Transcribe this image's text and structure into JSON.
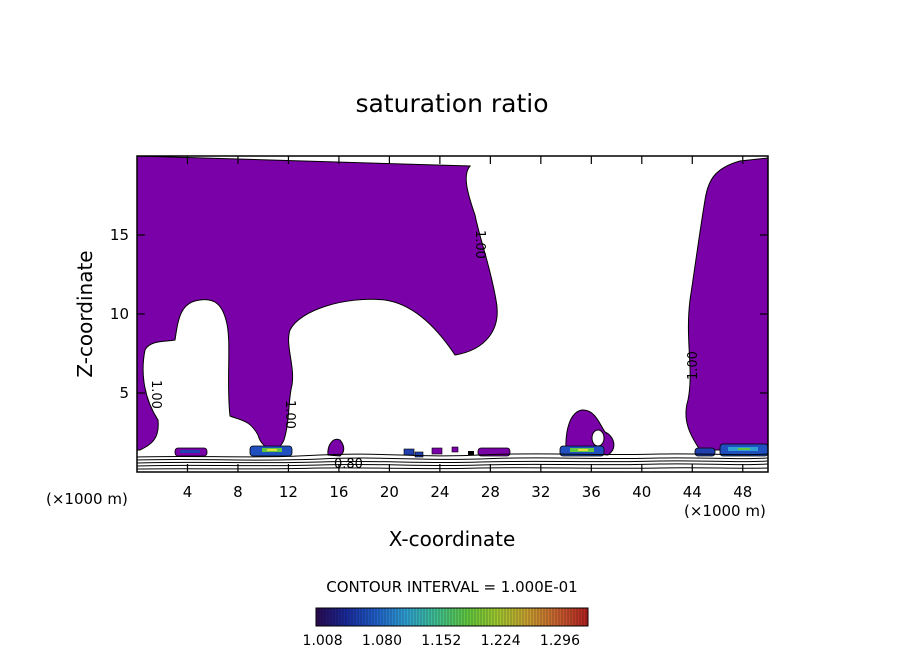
{
  "chart_data": {
    "type": "heatmap",
    "title": "saturation ratio",
    "xlabel": "X-coordinate",
    "ylabel": "Z-coordinate",
    "x_unit_label": "(×1000 m)",
    "z_unit_label": "(×1000 m)",
    "xlim": [
      0,
      50
    ],
    "ylim": [
      0,
      20
    ],
    "x_ticks": [
      4,
      8,
      12,
      16,
      20,
      24,
      28,
      32,
      36,
      40,
      44,
      48
    ],
    "y_ticks": [
      5,
      10,
      15
    ],
    "contour_interval_label": "CONTOUR INTERVAL = 1.000E-01",
    "contour_labels": [
      "1.00",
      "1.00",
      "1.00",
      "1.00",
      "0.80"
    ],
    "colorbar": {
      "min": 1.0,
      "max": 1.33,
      "tick_labels": [
        "1.008",
        "1.080",
        "1.152",
        "1.224",
        "1.296"
      ],
      "colors": [
        "#2a0a50",
        "#1a2a9a",
        "#2060c8",
        "#30a0d0",
        "#40c090",
        "#60c840",
        "#a0c830",
        "#c8a030",
        "#c86030",
        "#b02020"
      ]
    },
    "fill_color": "#7a00a8",
    "contour_line_color": "#000000",
    "regions": [
      {
        "name": "left-upper-saturated",
        "x": [
          0,
          26.5
        ],
        "z": [
          7.5,
          20
        ]
      },
      {
        "name": "right-upper-saturated",
        "x": [
          43,
          50
        ],
        "z": [
          1.2,
          20
        ]
      },
      {
        "name": "left-column",
        "x": [
          0,
          2
        ],
        "z": [
          1,
          8
        ]
      },
      {
        "name": "mid-column",
        "x": [
          7,
          12
        ],
        "z": [
          1.5,
          10.5
        ]
      },
      {
        "name": "cell-36km",
        "x": [
          34,
          38
        ],
        "z": [
          1.2,
          4
        ]
      }
    ]
  }
}
